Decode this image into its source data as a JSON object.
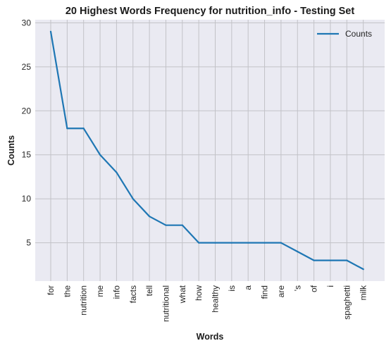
{
  "chart_data": {
    "type": "line",
    "title": "20 Highest Words Frequency for nutrition_info - Testing Set",
    "xlabel": "Words",
    "ylabel": "Counts",
    "categories": [
      "for",
      "the",
      "nutrition",
      "me",
      "info",
      "facts",
      "tell",
      "nutritional",
      "what",
      "how",
      "healthy",
      "is",
      "a",
      "find",
      "are",
      "'s",
      "of",
      "i",
      "spaghetti",
      "milk"
    ],
    "series": [
      {
        "name": "Counts",
        "values": [
          29,
          18,
          18,
          15,
          13,
          10,
          8,
          7,
          7,
          5,
          5,
          5,
          5,
          5,
          5,
          4,
          3,
          3,
          3,
          2
        ]
      }
    ],
    "yticks": [
      5,
      10,
      15,
      20,
      25,
      30
    ],
    "ylim": [
      0.65,
      30.35
    ],
    "grid": true,
    "legend_position": "top-right",
    "colors": {
      "line": "#1f77b4",
      "plot_background": "#eaeaf2",
      "grid": "#c2c2c7"
    }
  }
}
